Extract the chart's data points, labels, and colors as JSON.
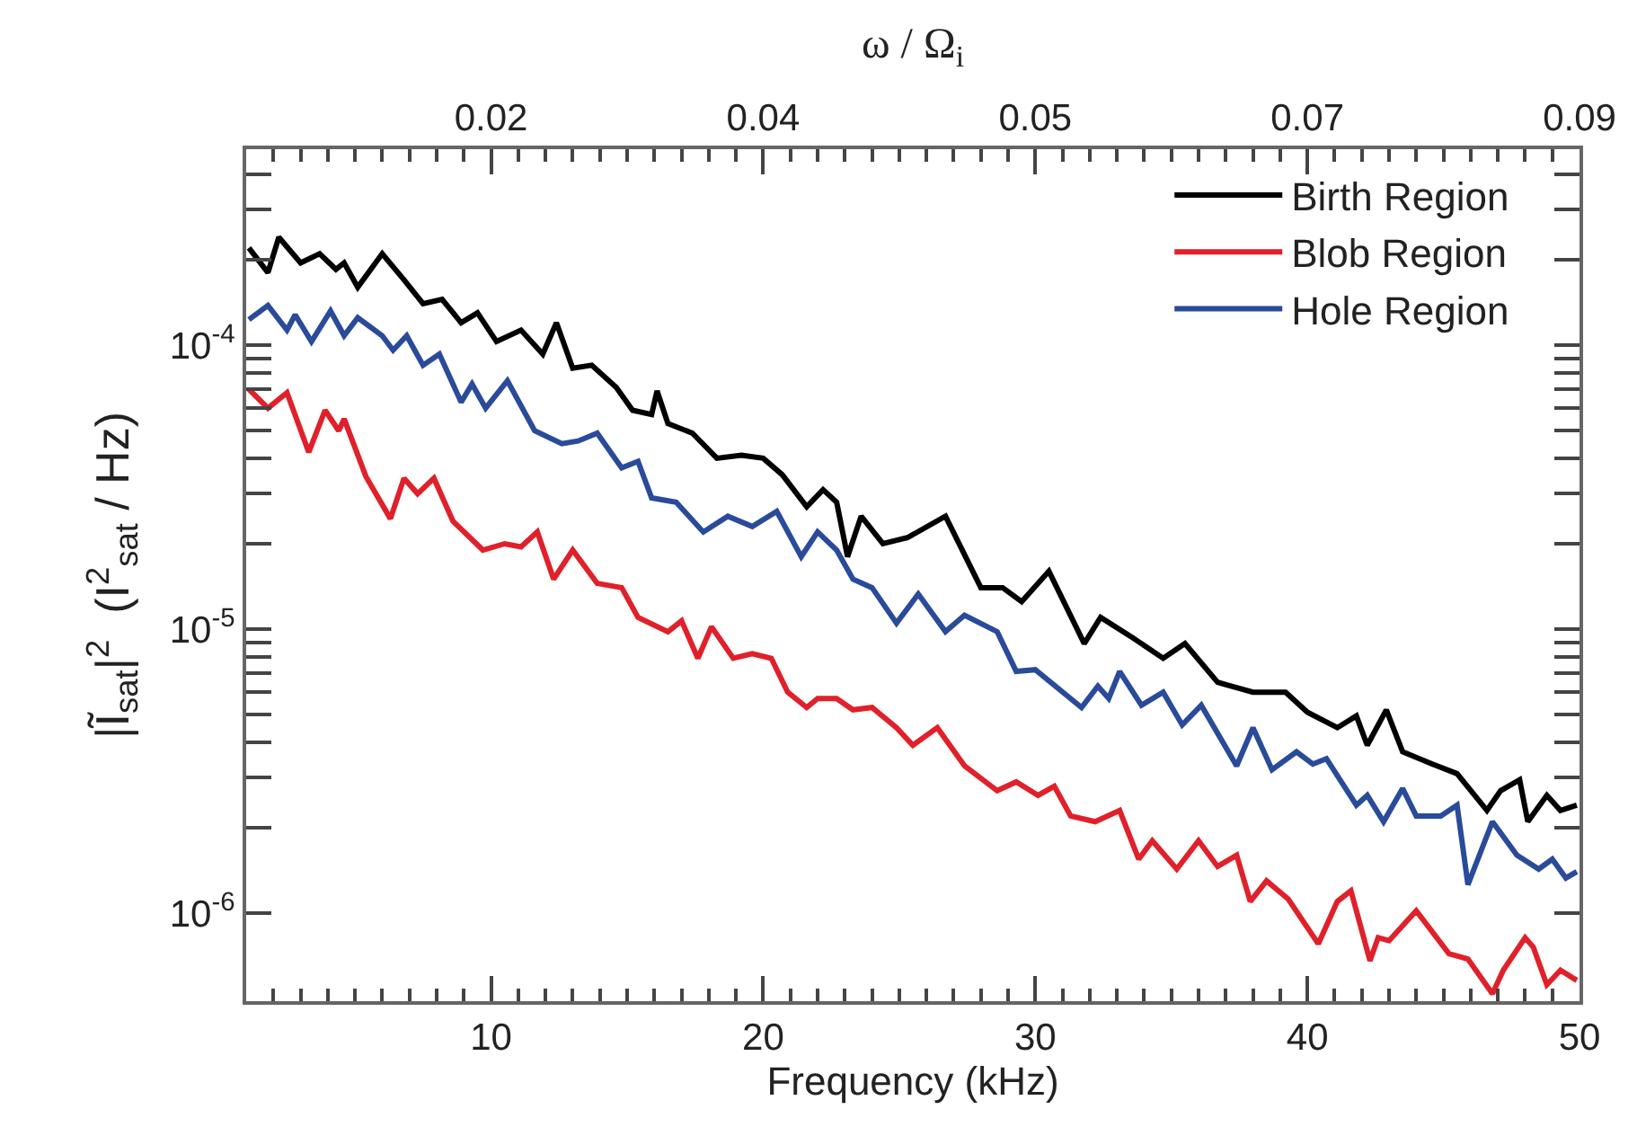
{
  "chart_data": {
    "type": "line",
    "xlabel": "Frequency (kHz)",
    "x2label": "ω / Ω$_{i}$",
    "ylabel": "|Ĩ$_{sat}$|$^{2}$  (I$^{2}$$_{sat}$ / Hz)",
    "log": "y",
    "legend": "top right",
    "line_style": "solid",
    "marker": "none",
    "xlim": [
      1,
      50
    ],
    "ylim": [
      4.9e-07,
      0.00049
    ],
    "x2lim": [
      0.0018,
      0.09
    ],
    "xticks": [
      {
        "value": 2,
        "label": null
      },
      {
        "value": 3,
        "label": null
      },
      {
        "value": 4,
        "label": null
      },
      {
        "value": 5,
        "label": null
      },
      {
        "value": 6,
        "label": null
      },
      {
        "value": 7,
        "label": null
      },
      {
        "value": 8,
        "label": null
      },
      {
        "value": 9,
        "label": null
      },
      10,
      {
        "value": 11,
        "label": null
      },
      {
        "value": 12,
        "label": null
      },
      {
        "value": 13,
        "label": null
      },
      {
        "value": 14,
        "label": null
      },
      {
        "value": 15,
        "label": null
      },
      {
        "value": 16,
        "label": null
      },
      {
        "value": 17,
        "label": null
      },
      {
        "value": 18,
        "label": null
      },
      {
        "value": 19,
        "label": null
      },
      20,
      {
        "value": 21,
        "label": null
      },
      {
        "value": 22,
        "label": null
      },
      {
        "value": 23,
        "label": null
      },
      {
        "value": 24,
        "label": null
      },
      {
        "value": 25,
        "label": null
      },
      {
        "value": 26,
        "label": null
      },
      {
        "value": 27,
        "label": null
      },
      {
        "value": 28,
        "label": null
      },
      {
        "value": 29,
        "label": null
      },
      30,
      {
        "value": 31,
        "label": null
      },
      {
        "value": 32,
        "label": null
      },
      {
        "value": 33,
        "label": null
      },
      {
        "value": 34,
        "label": null
      },
      {
        "value": 35,
        "label": null
      },
      {
        "value": 36,
        "label": null
      },
      {
        "value": 37,
        "label": null
      },
      {
        "value": 38,
        "label": null
      },
      {
        "value": 39,
        "label": null
      },
      40,
      {
        "value": 41,
        "label": null
      },
      {
        "value": 42,
        "label": null
      },
      {
        "value": 43,
        "label": null
      },
      {
        "value": 44,
        "label": null
      },
      {
        "value": 45,
        "label": null
      },
      {
        "value": 46,
        "label": null
      },
      {
        "value": 47,
        "label": null
      },
      {
        "value": 48,
        "label": null
      },
      {
        "value": 49,
        "label": null
      },
      50
    ],
    "x2ticks": [
      {
        "value": 0.018,
        "label": "0.02"
      },
      {
        "value": 0.036,
        "label": "0.04"
      },
      {
        "value": 0.054,
        "label": "0.05"
      },
      {
        "value": 0.072,
        "label": "0.07"
      },
      {
        "value": 0.09,
        "label": "0.09"
      },
      {
        "value": 0.0036,
        "label": null
      },
      {
        "value": 0.0054,
        "label": null
      },
      {
        "value": 0.0072,
        "label": null
      },
      {
        "value": 0.009,
        "label": null
      },
      {
        "value": 0.0108,
        "label": null
      },
      {
        "value": 0.0126,
        "label": null
      },
      {
        "value": 0.0144,
        "label": null
      },
      {
        "value": 0.0162,
        "label": null
      },
      {
        "value": 0.0198,
        "label": null
      },
      {
        "value": 0.0216,
        "label": null
      },
      {
        "value": 0.0234,
        "label": null
      },
      {
        "value": 0.0252,
        "label": null
      },
      {
        "value": 0.027,
        "label": null
      },
      {
        "value": 0.0288,
        "label": null
      },
      {
        "value": 0.0306,
        "label": null
      },
      {
        "value": 0.0324,
        "label": null
      },
      {
        "value": 0.0342,
        "label": null
      },
      {
        "value": 0.0378,
        "label": null
      },
      {
        "value": 0.0396,
        "label": null
      },
      {
        "value": 0.0414,
        "label": null
      },
      {
        "value": 0.0432,
        "label": null
      },
      {
        "value": 0.045,
        "label": null
      },
      {
        "value": 0.0468,
        "label": null
      },
      {
        "value": 0.0486,
        "label": null
      },
      {
        "value": 0.0504,
        "label": null
      },
      {
        "value": 0.0522,
        "label": null
      },
      {
        "value": 0.0558,
        "label": null
      },
      {
        "value": 0.0576,
        "label": null
      },
      {
        "value": 0.0594,
        "label": null
      },
      {
        "value": 0.0612,
        "label": null
      },
      {
        "value": 0.063,
        "label": null
      },
      {
        "value": 0.0648,
        "label": null
      },
      {
        "value": 0.0666,
        "label": null
      },
      {
        "value": 0.0684,
        "label": null
      },
      {
        "value": 0.0702,
        "label": null
      },
      {
        "value": 0.0738,
        "label": null
      },
      {
        "value": 0.0756,
        "label": null
      },
      {
        "value": 0.0774,
        "label": null
      },
      {
        "value": 0.0792,
        "label": null
      },
      {
        "value": 0.081,
        "label": null
      },
      {
        "value": 0.0828,
        "label": null
      },
      {
        "value": 0.0846,
        "label": null
      },
      {
        "value": 0.0864,
        "label": null
      },
      {
        "value": 0.0882,
        "label": null
      }
    ],
    "yticks": [
      {
        "value": 1e-06,
        "label": "10$^{-6}$"
      },
      {
        "value": 1e-05,
        "label": "10$^{-5}$"
      },
      {
        "value": 0.0001,
        "label": "10$^{-4}$"
      },
      {
        "value": 2e-06,
        "label": null
      },
      {
        "value": 3e-06,
        "label": null
      },
      {
        "value": 4e-06,
        "label": null
      },
      {
        "value": 5e-06,
        "label": null
      },
      {
        "value": 6e-06,
        "label": null
      },
      {
        "value": 7e-06,
        "label": null
      },
      {
        "value": 8e-06,
        "label": null
      },
      {
        "value": 9e-06,
        "label": null
      },
      {
        "value": 2e-05,
        "label": null
      },
      {
        "value": 3e-05,
        "label": null
      },
      {
        "value": 4e-05,
        "label": null
      },
      {
        "value": 5e-05,
        "label": null
      },
      {
        "value": 6e-05,
        "label": null
      },
      {
        "value": 7e-05,
        "label": null
      },
      {
        "value": 8e-05,
        "label": null
      },
      {
        "value": 9e-05,
        "label": null
      },
      {
        "value": 0.0002,
        "label": null
      },
      {
        "value": 0.0003,
        "label": null
      },
      {
        "value": 0.0004,
        "label": null
      }
    ],
    "series": [
      {
        "name": "Birth Region",
        "color": "#000000",
        "x": [
          1.1,
          1.8,
          2.2,
          3.0,
          3.7,
          4.3,
          4.6,
          5.1,
          6.0,
          6.8,
          7.5,
          8.2,
          8.9,
          9.5,
          10.2,
          11.1,
          11.9,
          12.4,
          13.0,
          13.7,
          14.6,
          15.2,
          15.9,
          16.1,
          16.5,
          17.4,
          18.3,
          19.2,
          20.0,
          20.7,
          21.6,
          22.2,
          22.7,
          23.1,
          23.6,
          24.4,
          25.3,
          26.7,
          28.0,
          28.8,
          29.5,
          30.5,
          31.8,
          32.4,
          33.6,
          34.7,
          35.5,
          36.7,
          38.0,
          39.2,
          40.0,
          41.1,
          41.8,
          42.2,
          42.9,
          43.5,
          44.6,
          45.5,
          46.6,
          47.1,
          47.8,
          48.1,
          48.8,
          49.3,
          49.9
        ],
        "values": [
          0.00022,
          0.00018,
          0.00024,
          0.000195,
          0.00021,
          0.000185,
          0.000195,
          0.00016,
          0.00021,
          0.00017,
          0.00014,
          0.000145,
          0.00012,
          0.00013,
          0.000103,
          0.000113,
          9.3e-05,
          0.00012,
          8.3e-05,
          8.5e-05,
          7.1e-05,
          5.9e-05,
          5.7e-05,
          6.9e-05,
          5.3e-05,
          4.9e-05,
          4e-05,
          4.1e-05,
          4e-05,
          3.5e-05,
          2.7e-05,
          3.1e-05,
          2.8e-05,
          1.8e-05,
          2.5e-05,
          2e-05,
          2.1e-05,
          2.5e-05,
          1.4e-05,
          1.4e-05,
          1.25e-05,
          1.6e-05,
          8.9e-06,
          1.1e-05,
          9.3e-06,
          7.9e-06,
          8.9e-06,
          6.5e-06,
          6e-06,
          6e-06,
          5.1e-06,
          4.5e-06,
          4.95e-06,
          3.9e-06,
          5.2e-06,
          3.7e-06,
          3.35e-06,
          3.1e-06,
          2.3e-06,
          2.7e-06,
          2.95e-06,
          2.1e-06,
          2.6e-06,
          2.3e-06,
          2.4e-06
        ]
      },
      {
        "name": "Blob Region",
        "color": "#e0202a",
        "x": [
          1.1,
          1.8,
          2.5,
          3.3,
          3.9,
          4.4,
          4.6,
          5.4,
          6.3,
          6.8,
          7.3,
          7.9,
          8.6,
          9.7,
          10.5,
          11.1,
          11.7,
          12.3,
          13.0,
          13.9,
          14.8,
          15.4,
          16.5,
          17.0,
          17.6,
          18.1,
          18.9,
          19.6,
          20.3,
          20.9,
          21.6,
          22.0,
          22.7,
          23.3,
          24.0,
          24.9,
          25.5,
          26.4,
          27.4,
          28.6,
          29.3,
          30.1,
          30.7,
          31.3,
          32.2,
          33.1,
          33.8,
          34.3,
          35.2,
          36.0,
          36.7,
          37.4,
          37.9,
          38.5,
          39.3,
          40.4,
          41.1,
          41.6,
          42.3,
          42.6,
          43.0,
          44.0,
          45.2,
          45.9,
          46.8,
          47.2,
          48.0,
          48.3,
          48.8,
          49.3,
          49.9
        ],
        "values": [
          7e-05,
          6e-05,
          6.8e-05,
          4.2e-05,
          5.9e-05,
          5e-05,
          5.5e-05,
          3.45e-05,
          2.45e-05,
          3.4e-05,
          3e-05,
          3.4e-05,
          2.4e-05,
          1.9e-05,
          2e-05,
          1.95e-05,
          2.2e-05,
          1.5e-05,
          1.9e-05,
          1.45e-05,
          1.4e-05,
          1.1e-05,
          9.8e-06,
          1.07e-05,
          7.9e-06,
          1.02e-05,
          7.9e-06,
          8.2e-06,
          7.9e-06,
          6e-06,
          5.3e-06,
          5.7e-06,
          5.7e-06,
          5.2e-06,
          5.3e-06,
          4.5e-06,
          3.9e-06,
          4.5e-06,
          3.3e-06,
          2.7e-06,
          2.9e-06,
          2.6e-06,
          2.8e-06,
          2.2e-06,
          2.1e-06,
          2.3e-06,
          1.55e-06,
          1.8e-06,
          1.43e-06,
          1.8e-06,
          1.46e-06,
          1.6e-06,
          1.1e-06,
          1.3e-06,
          1.12e-06,
          7.8e-07,
          1.1e-06,
          1.2e-06,
          6.8e-07,
          8.2e-07,
          8e-07,
          1.02e-06,
          7.2e-07,
          6.9e-07,
          5.2e-07,
          6.3e-07,
          8.2e-07,
          7.6e-07,
          5.6e-07,
          6.3e-07,
          5.8e-07
        ]
      },
      {
        "name": "Hole Region",
        "color": "#2a4a9a",
        "x": [
          1.1,
          1.8,
          2.5,
          2.8,
          3.4,
          4.1,
          4.6,
          5.1,
          6.0,
          6.4,
          6.9,
          7.5,
          8.1,
          8.9,
          9.3,
          9.8,
          10.6,
          11.6,
          12.6,
          13.2,
          13.9,
          14.8,
          15.4,
          15.9,
          16.8,
          17.8,
          18.7,
          19.6,
          20.5,
          21.4,
          22.0,
          22.7,
          23.3,
          24.0,
          24.9,
          25.7,
          26.7,
          27.4,
          28.6,
          29.3,
          30.0,
          31.7,
          32.3,
          32.7,
          33.1,
          33.9,
          34.7,
          35.4,
          36.1,
          37.4,
          38.0,
          38.7,
          39.6,
          40.2,
          40.7,
          41.8,
          42.2,
          42.8,
          43.5,
          44.0,
          44.9,
          45.5,
          45.9,
          46.8,
          47.7,
          48.5,
          49.0,
          49.5,
          49.9
        ],
        "values": [
          0.000123,
          0.000138,
          0.000113,
          0.000128,
          0.000103,
          0.000132,
          0.000108,
          0.000125,
          0.000108,
          9.6e-05,
          0.000108,
          8.5e-05,
          9.3e-05,
          6.3e-05,
          7.3e-05,
          6e-05,
          7.5e-05,
          5e-05,
          4.5e-05,
          4.6e-05,
          4.9e-05,
          3.7e-05,
          3.9e-05,
          2.9e-05,
          2.8e-05,
          2.2e-05,
          2.5e-05,
          2.3e-05,
          2.6e-05,
          1.8e-05,
          2.2e-05,
          1.9e-05,
          1.5e-05,
          1.4e-05,
          1.05e-05,
          1.33e-05,
          9.8e-06,
          1.12e-05,
          9.8e-06,
          7.1e-06,
          7.2e-06,
          5.3e-06,
          6.3e-06,
          5.7e-06,
          7.1e-06,
          5.4e-06,
          6e-06,
          4.6e-06,
          5.4e-06,
          3.3e-06,
          4.5e-06,
          3.2e-06,
          3.7e-06,
          3.35e-06,
          3.5e-06,
          2.4e-06,
          2.6e-06,
          2.1e-06,
          2.75e-06,
          2.2e-06,
          2.2e-06,
          2.4e-06,
          1.26e-06,
          2.1e-06,
          1.6e-06,
          1.43e-06,
          1.55e-06,
          1.33e-06,
          1.4e-06
        ]
      }
    ]
  }
}
